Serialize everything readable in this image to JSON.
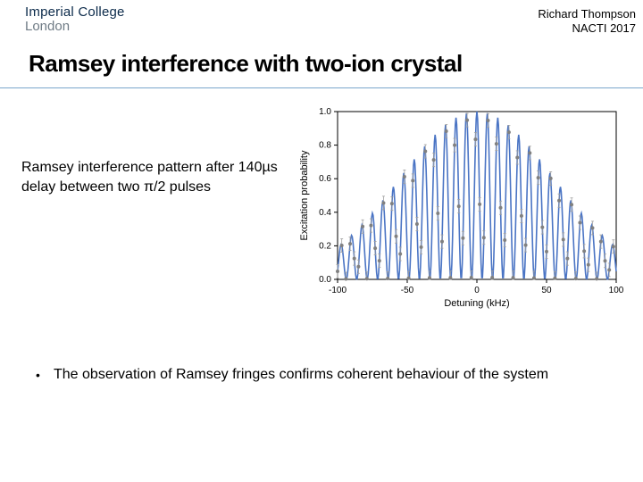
{
  "header": {
    "logo_line1": "Imperial College",
    "logo_line2": "London",
    "presenter": "Richard Thompson",
    "event": "NACTI 2017"
  },
  "title": "Ramsey interference with two-ion crystal",
  "left_text": "Ramsey interference pattern after 140µs delay between two π/2 pulses",
  "bullet": "The observation of Ramsey fringes confirms coherent behaviour of the system",
  "chart": {
    "type": "line",
    "xlabel": "Detuning (kHz)",
    "ylabel": "Excitation probability",
    "xlim": [
      -100,
      100
    ],
    "ylim": [
      0.0,
      1.0
    ],
    "xtick_step": 50,
    "ytick_step": 0.2,
    "yticks": [
      "0.0",
      "0.2",
      "0.4",
      "0.6",
      "0.8",
      "1.0"
    ],
    "xticks": [
      "-100",
      "-50",
      "0",
      "50",
      "100"
    ],
    "background_color": "#ffffff",
    "axis_color": "#000000",
    "grid_color": "#d9d9d9",
    "line_color": "#4a74c4",
    "marker_color": "#808080",
    "errorbar_color": "#a0a0a0",
    "line_width": 1.6,
    "marker_size": 2.0,
    "envelope_sigma": 55,
    "fringe_period": 7.5,
    "x_step": 3,
    "error_bar_half": 0.04
  }
}
